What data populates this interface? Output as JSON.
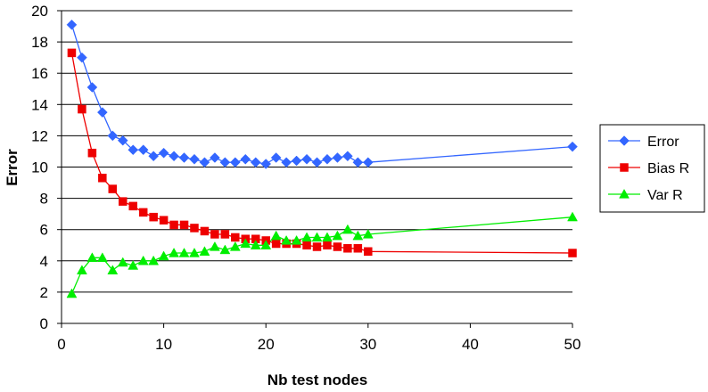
{
  "chart_data": {
    "type": "line",
    "title": "",
    "xlabel": "Nb test nodes",
    "ylabel": "Error",
    "xlim": [
      0,
      50
    ],
    "ylim": [
      0,
      20
    ],
    "x_ticks": [
      "0",
      "10",
      "20",
      "30",
      "40",
      "50"
    ],
    "y_ticks": [
      "0",
      "2",
      "4",
      "6",
      "8",
      "10",
      "12",
      "14",
      "16",
      "18",
      "20"
    ],
    "grid": "horizontal",
    "legend_position": "right",
    "series": [
      {
        "name": "Error",
        "color": "#3366ff",
        "marker": "diamond",
        "x": [
          1,
          2,
          3,
          4,
          5,
          6,
          7,
          8,
          9,
          10,
          11,
          12,
          13,
          14,
          15,
          16,
          17,
          18,
          19,
          20,
          21,
          22,
          23,
          24,
          25,
          26,
          27,
          28,
          29,
          30,
          50
        ],
        "y": [
          19.1,
          17.0,
          15.1,
          13.5,
          12.0,
          11.7,
          11.1,
          11.1,
          10.7,
          10.9,
          10.7,
          10.6,
          10.5,
          10.3,
          10.6,
          10.3,
          10.3,
          10.5,
          10.3,
          10.2,
          10.6,
          10.3,
          10.4,
          10.5,
          10.3,
          10.5,
          10.6,
          10.7,
          10.3,
          10.3,
          11.3
        ]
      },
      {
        "name": "Bias R",
        "color": "#ee0000",
        "marker": "square",
        "x": [
          1,
          2,
          3,
          4,
          5,
          6,
          7,
          8,
          9,
          10,
          11,
          12,
          13,
          14,
          15,
          16,
          17,
          18,
          19,
          20,
          21,
          22,
          23,
          24,
          25,
          26,
          27,
          28,
          29,
          30,
          50
        ],
        "y": [
          17.3,
          13.7,
          10.9,
          9.3,
          8.6,
          7.8,
          7.5,
          7.1,
          6.8,
          6.6,
          6.3,
          6.3,
          6.1,
          5.9,
          5.7,
          5.7,
          5.5,
          5.4,
          5.4,
          5.3,
          5.1,
          5.1,
          5.1,
          5.0,
          4.9,
          5.0,
          4.9,
          4.8,
          4.8,
          4.6,
          4.5
        ]
      },
      {
        "name": "Var R",
        "color": "#00ee00",
        "marker": "triangle",
        "x": [
          1,
          2,
          3,
          4,
          5,
          6,
          7,
          8,
          9,
          10,
          11,
          12,
          13,
          14,
          15,
          16,
          17,
          18,
          19,
          20,
          21,
          22,
          23,
          24,
          25,
          26,
          27,
          28,
          29,
          30,
          50
        ],
        "y": [
          1.9,
          3.4,
          4.2,
          4.2,
          3.4,
          3.9,
          3.7,
          4.0,
          4.0,
          4.3,
          4.5,
          4.5,
          4.5,
          4.6,
          4.9,
          4.7,
          4.9,
          5.1,
          5.0,
          5.0,
          5.6,
          5.3,
          5.3,
          5.5,
          5.5,
          5.5,
          5.6,
          6.0,
          5.6,
          5.7,
          6.8
        ]
      }
    ]
  }
}
